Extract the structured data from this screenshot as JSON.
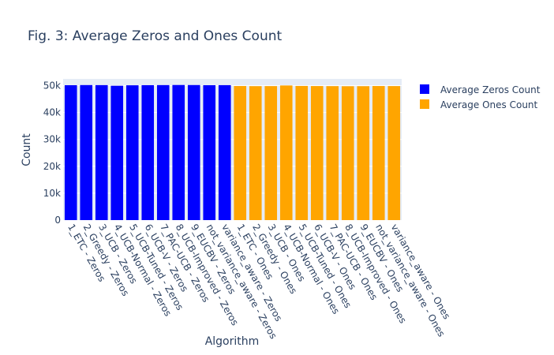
{
  "chart_data": {
    "type": "bar",
    "title": "Fig. 3: Average Zeros and Ones Count",
    "xlabel": "Algorithm",
    "ylabel": "Count",
    "ylim": [
      0,
      52500
    ],
    "yticks": [
      0,
      10000,
      20000,
      30000,
      40000,
      50000
    ],
    "ytick_labels": [
      "0",
      "10k",
      "20k",
      "30k",
      "40k",
      "50k"
    ],
    "grid": true,
    "legend_position": "top-right",
    "plot_background": "#e5ecf6",
    "categories": [
      "1_ETC - Zeros",
      "2_Greedy - Zeros",
      "3_UCB - Zeros",
      "4_UCB-Normal - Zeros",
      "5_UCB-Tuned - Zeros",
      "6_UCB-V - Zeros",
      "7_PAC-UCB - Zeros",
      "8_UCB-Improved - Zeros",
      "9_EUCBV - Zeros",
      "not_variance_aware - Zeros",
      "variance_aware - Zeros",
      "1_ETC - Ones",
      "2_Greedy - Ones",
      "3_UCB - Ones",
      "4_UCB-Normal - Ones",
      "5_UCB-Tuned - Ones",
      "6_UCB-V - Ones",
      "7_PAC-UCB - Ones",
      "8_UCB-Improved - Ones",
      "9_EUCBV - Ones",
      "not_variance_aware - Ones",
      "variance_aware - Ones"
    ],
    "series": [
      {
        "name": "Average Zeros Count",
        "color": "#0000ff",
        "values": [
          50150,
          50200,
          50180,
          49950,
          50120,
          50160,
          50190,
          50230,
          50210,
          50150,
          50170,
          null,
          null,
          null,
          null,
          null,
          null,
          null,
          null,
          null,
          null,
          null
        ]
      },
      {
        "name": "Average Ones Count",
        "color": "#ffa500",
        "values": [
          null,
          null,
          null,
          null,
          null,
          null,
          null,
          null,
          null,
          null,
          null,
          49850,
          49800,
          49820,
          50050,
          49880,
          49840,
          49810,
          49770,
          49790,
          49850,
          49830
        ]
      }
    ]
  }
}
